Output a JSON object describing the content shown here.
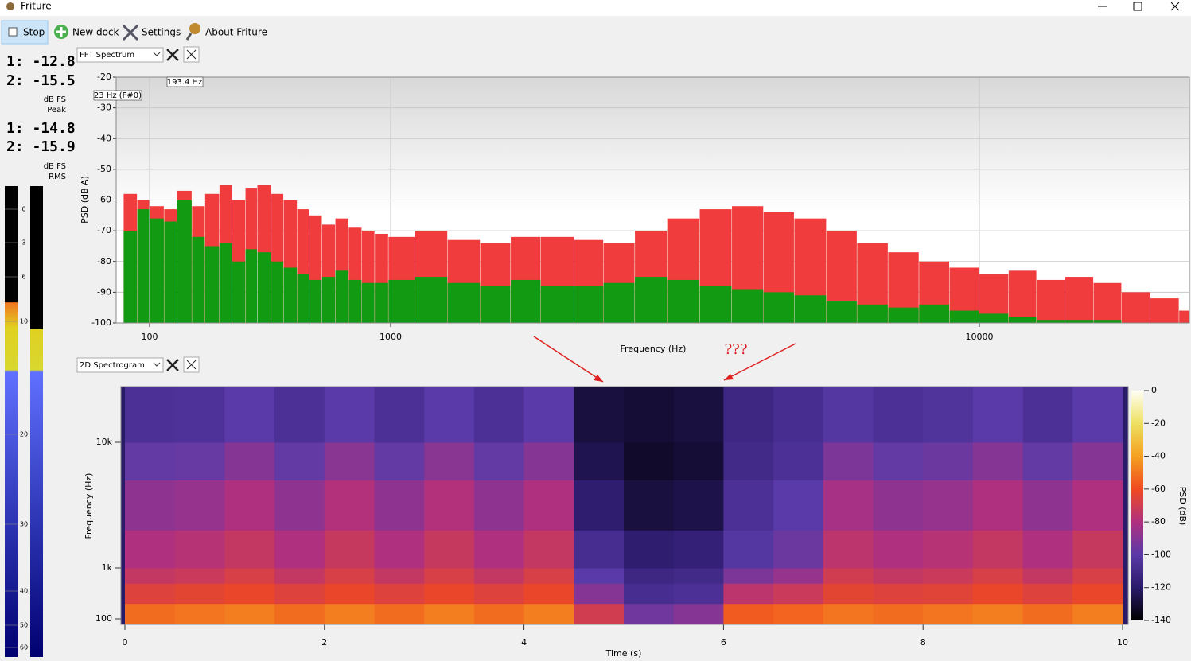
{
  "window": {
    "title": "Friture"
  },
  "toolbar": {
    "buttons": [
      "Stop",
      "New dock",
      "Settings",
      "About Friture"
    ]
  },
  "levels": {
    "peak": [
      "1: -12.8",
      "2: -15.5"
    ],
    "peak_unit": "dB FS",
    "peak_label": "Peak",
    "rms": [
      "1: -14.8",
      "2: -15.9"
    ],
    "rms_unit": "dB FS",
    "rms_label": "RMS",
    "meter": {
      "ylim": [
        -2,
        62
      ],
      "ticks": [
        0,
        3,
        6,
        10,
        20,
        30,
        40,
        50,
        60
      ],
      "levels": [
        8.3,
        10.7
      ]
    }
  },
  "docks": [
    "FFT Spectrum",
    "2D Spectrogram"
  ],
  "annotation": "???",
  "chart_data": [
    {
      "type": "bar",
      "x_scale": "log",
      "xlabel": "Frequency (Hz)",
      "ylabel": "PSD (dB A)",
      "annotations": [
        "193.4 Hz",
        "23 Hz (F#0)"
      ],
      "x": [
        80,
        90,
        100,
        115,
        130,
        150,
        170,
        195,
        220,
        250,
        280,
        320,
        360,
        410,
        460,
        520,
        590,
        670,
        760,
        860,
        980,
        1100,
        1250,
        1420,
        1600,
        1800,
        2050,
        2300,
        2600,
        2950,
        3350,
        3800,
        4300,
        4850,
        5500,
        6200,
        7000,
        7900,
        8900,
        10000,
        11300,
        12700,
        14300,
        16100,
        18100,
        20400,
        23000
      ],
      "series": [
        {
          "color": "#f03c3c",
          "values": [
            -58,
            -60,
            -62,
            -63,
            -57,
            -62,
            -58,
            -55,
            -60,
            -56,
            -55,
            -58,
            -60,
            -63,
            -65,
            -68,
            -66,
            -69,
            -70,
            -71,
            -72,
            -70,
            -73,
            -74,
            -72,
            -72,
            -73,
            -74,
            -70,
            -66,
            -63,
            -62,
            -64,
            -66,
            -70,
            -74,
            -77,
            -80,
            -82,
            -84,
            -83,
            -86,
            -85,
            -87,
            -90,
            -92,
            -96
          ]
        },
        {
          "color": "#139a13",
          "values": [
            -70,
            -63,
            -66,
            -67,
            -60,
            -72,
            -75,
            -74,
            -80,
            -76,
            -77,
            -80,
            -82,
            -84,
            -86,
            -85,
            -83,
            -86,
            -87,
            -87,
            -86,
            -85,
            -87,
            -88,
            -86,
            -88,
            -88,
            -87,
            -85,
            -86,
            -88,
            -89,
            -90,
            -91,
            -93,
            -94,
            -95,
            -94,
            -96,
            -97,
            -98,
            -99,
            -99,
            -99,
            -100,
            -100,
            -100
          ]
        }
      ],
      "xlim": [
        75,
        24000
      ],
      "ylim": [
        -100,
        -20
      ],
      "xticks": [
        100,
        1000,
        10000
      ],
      "yticks": [
        -100,
        -90,
        -80,
        -70,
        -60,
        -50,
        -40,
        -30,
        -20
      ],
      "grid": true
    },
    {
      "type": "heatmap",
      "y_scale": "log",
      "xlabel": "Time (s)",
      "ylabel": "Frequency (Hz)",
      "colorbar_label": "PSD (dB)",
      "x_edges": [
        0,
        0.5,
        1,
        1.5,
        2,
        2.5,
        3,
        3.5,
        4,
        4.5,
        5,
        5.5,
        6,
        6.5,
        7,
        7.5,
        8,
        8.5,
        9,
        9.5,
        10
      ],
      "y_edges": [
        80,
        200,
        500,
        1000,
        2000,
        5000,
        10000,
        24000
      ],
      "z": [
        [
          -52,
          -66,
          -74,
          -80,
          -88,
          -98,
          -106
        ],
        [
          -50,
          -64,
          -72,
          -78,
          -86,
          -97,
          -105
        ],
        [
          -48,
          -62,
          -68,
          -74,
          -80,
          -90,
          -100
        ],
        [
          -52,
          -66,
          -74,
          -80,
          -88,
          -98,
          -106
        ],
        [
          -48,
          -62,
          -68,
          -73,
          -79,
          -89,
          -100
        ],
        [
          -52,
          -66,
          -74,
          -80,
          -88,
          -98,
          -106
        ],
        [
          -48,
          -62,
          -68,
          -73,
          -79,
          -89,
          -100
        ],
        [
          -52,
          -66,
          -74,
          -80,
          -88,
          -98,
          -106
        ],
        [
          -48,
          -62,
          -68,
          -74,
          -80,
          -90,
          -100
        ],
        [
          -70,
          -90,
          -100,
          -108,
          -118,
          -125,
          -128
        ],
        [
          -95,
          -108,
          -112,
          -118,
          -128,
          -132,
          -130
        ],
        [
          -90,
          -106,
          -110,
          -116,
          -126,
          -130,
          -128
        ],
        [
          -56,
          -76,
          -92,
          -102,
          -106,
          -110,
          -112
        ],
        [
          -54,
          -72,
          -86,
          -96,
          -100,
          -106,
          -108
        ],
        [
          -50,
          -64,
          -70,
          -76,
          -82,
          -92,
          -102
        ],
        [
          -52,
          -66,
          -74,
          -80,
          -88,
          -98,
          -106
        ],
        [
          -50,
          -65,
          -72,
          -78,
          -86,
          -96,
          -104
        ],
        [
          -48,
          -62,
          -68,
          -74,
          -80,
          -90,
          -100
        ],
        [
          -52,
          -66,
          -74,
          -80,
          -88,
          -98,
          -106
        ],
        [
          -48,
          -62,
          -68,
          -73,
          -80,
          -90,
          -100
        ]
      ],
      "xlim": [
        0,
        10
      ],
      "ylim": [
        80,
        24000
      ],
      "xticks": [
        0,
        2,
        4,
        6,
        8,
        10
      ],
      "yticks": [
        100,
        {
          "value": 1000,
          "label": "1k"
        },
        {
          "value": 10000,
          "label": "10k"
        }
      ],
      "clim": [
        -140,
        0
      ],
      "cticks": [
        0,
        -20,
        -40,
        -60,
        -80,
        -100,
        -120,
        -140
      ]
    }
  ]
}
